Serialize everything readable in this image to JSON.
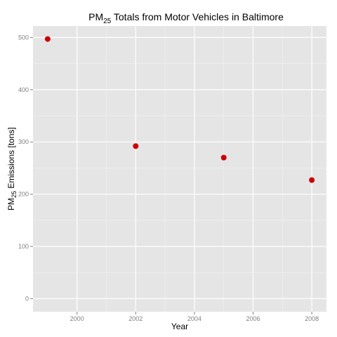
{
  "chart_data": {
    "type": "scatter",
    "title": {
      "prefix": "PM",
      "sub": "25",
      "suffix": " Totals from Motor Vehicles in Baltimore"
    },
    "xlabel": "Year",
    "ylabel": {
      "prefix": "PM",
      "sub": "25",
      "suffix": " Emissions [tons]"
    },
    "x": [
      1999,
      2002,
      2005,
      2008
    ],
    "y": [
      497,
      292,
      270,
      227
    ],
    "xlim": [
      1998.5,
      2008.5
    ],
    "ylim": [
      -25,
      522
    ],
    "xticks": [
      2000,
      2002,
      2004,
      2006,
      2008
    ],
    "yticks": [
      0,
      100,
      200,
      300,
      400,
      500
    ],
    "grid": true,
    "colors": {
      "panel": "#e5e5e5",
      "grid_major": "#ffffff",
      "grid_minor": "#f2f2f2",
      "point": "#cc0000"
    }
  }
}
